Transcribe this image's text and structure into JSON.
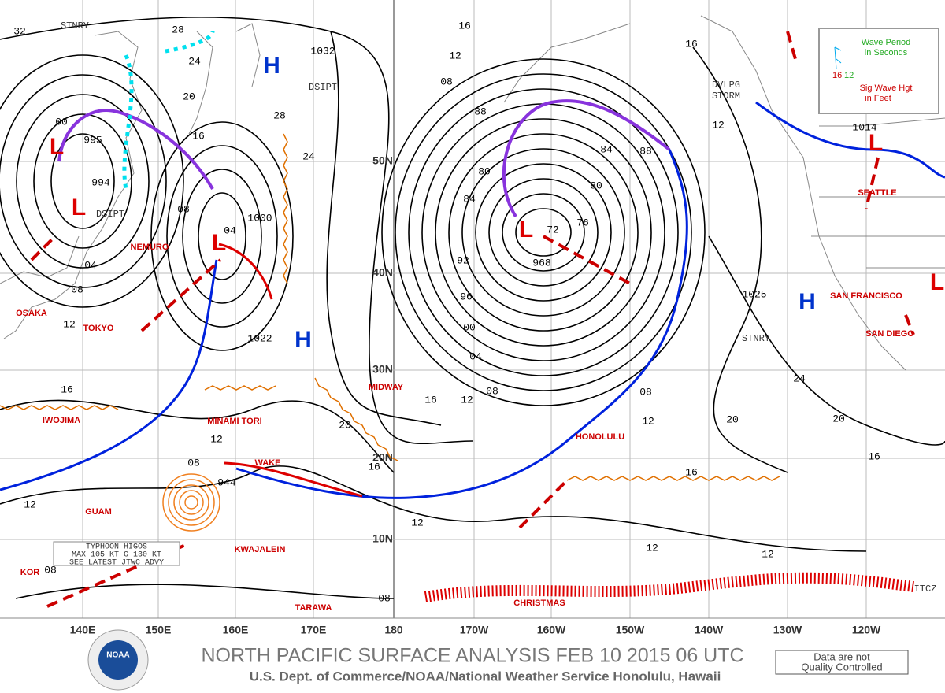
{
  "header": {
    "title": "NORTH PACIFIC SURFACE ANALYSIS FEB 10 2015 06 UTC",
    "subtitle": "U.S. Dept. of Commerce/NOAA/National Weather Service Honolulu, Hawaii",
    "disclaimer": [
      "Data are not",
      "Quality Controlled"
    ],
    "logo": "NOAA"
  },
  "legend": {
    "lines": [
      "Wave Period",
      "in Seconds",
      "Sig Wave Hgt",
      "in Feet"
    ],
    "sample_height": "16",
    "sample_period": "12"
  },
  "lon_labels": [
    "140E",
    "150E",
    "160E",
    "170E",
    "180",
    "170W",
    "160W",
    "150W",
    "140W",
    "130W",
    "120W"
  ],
  "lat_labels": [
    "50N",
    "40N",
    "30N",
    "20N",
    "10N"
  ],
  "places": [
    "OSAKA",
    "TOKYO",
    "NEMURO",
    "IWOJIMA",
    "MINAMI TORI",
    "GUAM",
    "WAKE",
    "KWAJALEIN",
    "KOR",
    "TARAWA",
    "MIDWAY",
    "HONOLULU",
    "CHRISTMAS",
    "SEATTLE",
    "SAN FRANCISCO",
    "SAN DIEGO"
  ],
  "highs": [
    "H",
    "H",
    "H"
  ],
  "lows": [
    "L",
    "L",
    "L",
    "L",
    "L",
    "L"
  ],
  "pressure_labels": [
    "1032",
    "1000",
    "1022",
    "1025",
    "1014",
    "995",
    "994",
    "968",
    "944",
    "72",
    "04"
  ],
  "isobar_labels": [
    "16",
    "12",
    "08",
    "88",
    "84",
    "80",
    "80",
    "84",
    "88",
    "92",
    "96",
    "00",
    "04",
    "08",
    "12",
    "16",
    "20",
    "24",
    "28",
    "16",
    "12",
    "76",
    "16",
    "12",
    "08",
    "12",
    "12",
    "12",
    "12",
    "16",
    "20",
    "20",
    "16",
    "24",
    "08",
    "08",
    "32",
    "28",
    "24",
    "20",
    "16",
    "08",
    "04",
    "08",
    "12",
    "00",
    "16",
    "08",
    "12"
  ],
  "front_labels": [
    "STNRY",
    "DSIPT",
    "DSIPT",
    "DVLPG",
    "STORM",
    "STNRY",
    "ITCZ"
  ],
  "typhoon_box": [
    "TYPHOON HIGOS",
    "MAX 105 KT G 130 KT",
    "SEE LATEST JTWC ADVY"
  ]
}
